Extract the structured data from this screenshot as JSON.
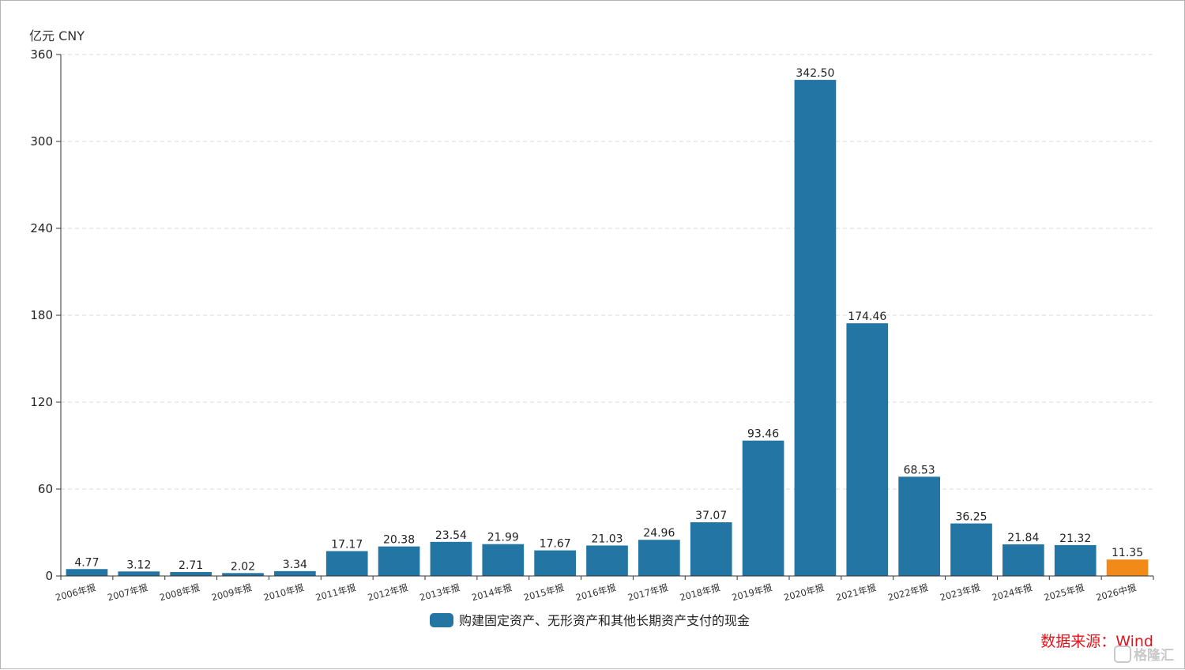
{
  "chart_data": {
    "type": "bar",
    "ylabel": "亿元  CNY",
    "ylim": [
      0,
      360
    ],
    "yticks": [
      0,
      60,
      120,
      180,
      240,
      300,
      360
    ],
    "grid": "horizontal-dashed",
    "categories": [
      "2006年报",
      "2007年报",
      "2008年报",
      "2009年报",
      "2010年报",
      "2011年报",
      "2012年报",
      "2013年报",
      "2014年报",
      "2015年报",
      "2016年报",
      "2017年报",
      "2018年报",
      "2019年报",
      "2020年报",
      "2021年报",
      "2022年报",
      "2023年报",
      "2024年报",
      "2025年报",
      "2026中报"
    ],
    "series": [
      {
        "name": "购建固定资产、无形资产和其他长期资产支付的现金",
        "values": [
          4.77,
          3.12,
          2.71,
          2.02,
          3.34,
          17.17,
          20.38,
          23.54,
          21.99,
          17.67,
          21.03,
          24.96,
          37.07,
          93.46,
          342.5,
          174.46,
          68.53,
          36.25,
          21.84,
          21.32,
          11.35
        ],
        "labels": [
          "4.77",
          "3.12",
          "2.71",
          "2.02",
          "3.34",
          "17.17",
          "20.38",
          "23.54",
          "21.99",
          "17.67",
          "21.03",
          "24.96",
          "37.07",
          "93.46",
          "342.50",
          "174.46",
          "68.53",
          "36.25",
          "21.84",
          "21.32",
          "11.35"
        ]
      }
    ],
    "legend_position": "bottom-center",
    "colors": {
      "bar": "#2375a3",
      "highlight": "#f28a1a",
      "highlight_index": 20
    }
  },
  "source": "数据来源：Wind",
  "watermark": "格隆汇"
}
